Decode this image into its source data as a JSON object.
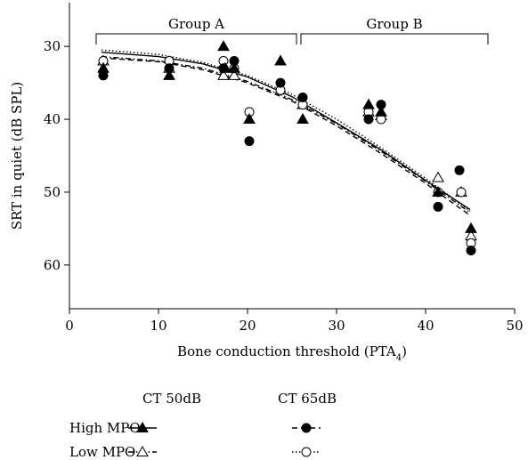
{
  "chart_data": {
    "type": "scatter",
    "xlabel": "Bone conduction threshold (PTA",
    "xlabel_subscript": "4",
    "xlabel_suffix": ")",
    "ylabel": "SRT in quiet (dB SPL)",
    "xlim": [
      0,
      50
    ],
    "ylim": [
      66,
      24
    ],
    "y_inverted": true,
    "xticks": [
      "0",
      "10",
      "20",
      "30",
      "40",
      "50"
    ],
    "yticks": [
      "30",
      "40",
      "50",
      "60"
    ],
    "group_labels": [
      {
        "label": "Group A",
        "x_range": [
          3,
          25.5
        ]
      },
      {
        "label": "Group B",
        "x_range": [
          26,
          47
        ]
      }
    ],
    "series": [
      {
        "name": "CT 50dB High MPO",
        "marker": "filled-triangle",
        "line": "solid",
        "points": [
          [
            3.8,
            33
          ],
          [
            11.2,
            34
          ],
          [
            17.3,
            30
          ],
          [
            17.5,
            33
          ],
          [
            18.5,
            33
          ],
          [
            20.2,
            40
          ],
          [
            23.7,
            32
          ],
          [
            26.2,
            40
          ],
          [
            33.6,
            38
          ],
          [
            35,
            39
          ],
          [
            41.4,
            50
          ],
          [
            45.1,
            55
          ]
        ],
        "fit": [
          [
            3.6,
            30.8
          ],
          [
            10,
            31.4
          ],
          [
            15,
            32.4
          ],
          [
            20,
            34.2
          ],
          [
            25,
            36.9
          ],
          [
            30,
            40.5
          ],
          [
            35,
            44.2
          ],
          [
            40,
            48.4
          ],
          [
            45,
            52.4
          ]
        ]
      },
      {
        "name": "CT 50dB Low MPO",
        "marker": "open-triangle",
        "line": "dash-dot",
        "points": [
          [
            3.8,
            32
          ],
          [
            11.2,
            33
          ],
          [
            17.3,
            34
          ],
          [
            18.5,
            34
          ],
          [
            23.7,
            36
          ],
          [
            26.2,
            38
          ],
          [
            33.6,
            39
          ],
          [
            35,
            39.5
          ],
          [
            41.4,
            48
          ],
          [
            44,
            50
          ],
          [
            45.1,
            56
          ]
        ],
        "fit": [
          [
            3.6,
            31.4
          ],
          [
            10,
            32
          ],
          [
            15,
            33
          ],
          [
            20,
            34.8
          ],
          [
            25,
            37.3
          ],
          [
            30,
            40.6
          ],
          [
            35,
            44.4
          ],
          [
            40,
            48.5
          ],
          [
            45,
            52.8
          ]
        ]
      },
      {
        "name": "CT 65dB High MPO",
        "marker": "filled-circle",
        "line": "dashed",
        "points": [
          [
            3.8,
            34
          ],
          [
            11.2,
            33
          ],
          [
            17.3,
            33
          ],
          [
            18.5,
            32
          ],
          [
            20.2,
            43
          ],
          [
            23.7,
            35
          ],
          [
            26.2,
            37
          ],
          [
            33.6,
            40
          ],
          [
            35,
            38
          ],
          [
            41.4,
            52
          ],
          [
            43.8,
            47
          ],
          [
            45.1,
            58
          ]
        ],
        "fit": [
          [
            3.6,
            31.6
          ],
          [
            10,
            32.1
          ],
          [
            15,
            33.2
          ],
          [
            20,
            35
          ],
          [
            25,
            37.5
          ],
          [
            30,
            40.9
          ],
          [
            35,
            44.7
          ],
          [
            40,
            48.8
          ],
          [
            45,
            53.2
          ]
        ]
      },
      {
        "name": "CT 65dB Low MPO",
        "marker": "open-circle",
        "line": "dotted",
        "points": [
          [
            3.8,
            32
          ],
          [
            11.2,
            32
          ],
          [
            17.3,
            32
          ],
          [
            18.5,
            33
          ],
          [
            20.2,
            39
          ],
          [
            23.7,
            36
          ],
          [
            26.2,
            38
          ],
          [
            33.6,
            39
          ],
          [
            35,
            40
          ],
          [
            41.4,
            50
          ],
          [
            44,
            50
          ],
          [
            45.1,
            57
          ]
        ],
        "fit": [
          [
            3.6,
            30.5
          ],
          [
            10,
            31.1
          ],
          [
            15,
            32.2
          ],
          [
            20,
            34
          ],
          [
            25,
            36.6
          ],
          [
            30,
            40
          ],
          [
            35,
            43.9
          ],
          [
            40,
            48.1
          ],
          [
            45,
            52.6
          ]
        ]
      }
    ],
    "legend": {
      "col1_header": "CT 50dB",
      "col2_header": "CT 65dB",
      "rows": [
        {
          "label": "High MPO"
        },
        {
          "label": "Low MPO"
        }
      ]
    }
  }
}
